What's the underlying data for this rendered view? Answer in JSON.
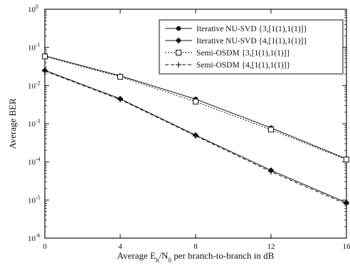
{
  "chart_data": {
    "type": "line",
    "xlabel": "Average E_b/N_0 per branch-to-branch in dB",
    "xlabel_parts": {
      "pre": "Average E",
      "sub1": "b",
      "mid": "/N",
      "sub2": "0",
      "post": " per branch-to-branch in dB"
    },
    "ylabel": "Average BER",
    "x_ticks": [
      0,
      4,
      8,
      12,
      16
    ],
    "x_tick_labels": [
      "0",
      "4",
      "8",
      "12",
      "16"
    ],
    "xlim": [
      0,
      16
    ],
    "y_scale": "log",
    "ylim": [
      1e-06,
      1
    ],
    "y_ticks": [
      {
        "value": 1,
        "base": "10",
        "exp": "0"
      },
      {
        "value": 0.1,
        "base": "10",
        "exp": "-1"
      },
      {
        "value": 0.01,
        "base": "10",
        "exp": "-2"
      },
      {
        "value": 0.001,
        "base": "10",
        "exp": "-3"
      },
      {
        "value": 0.0001,
        "base": "10",
        "exp": "-4"
      },
      {
        "value": 1e-05,
        "base": "10",
        "exp": "-5"
      },
      {
        "value": 1e-06,
        "base": "10",
        "exp": "-6"
      }
    ],
    "grid": false,
    "legend_position": "top-right",
    "series": [
      {
        "name": "Iterative NU-SVD {3,[1(1),1(1)]}",
        "marker": "filled-circle",
        "line": "solid",
        "x": [
          0,
          4,
          8,
          12,
          16
        ],
        "y": [
          0.06,
          0.018,
          0.0044,
          0.00078,
          0.00012
        ]
      },
      {
        "name": "Iterative NU-SVD {4,[1(1),1(1)]}",
        "marker": "filled-diamond",
        "line": "solid",
        "x": [
          0,
          4,
          8,
          12,
          16
        ],
        "y": [
          0.025,
          0.0045,
          0.0005,
          6e-05,
          8.5e-06
        ]
      },
      {
        "name": "Semi-OSDM {3,[1(1),1(1)]}",
        "marker": "open-square",
        "line": "dotted",
        "x": [
          0,
          4,
          8,
          12,
          16
        ],
        "y": [
          0.058,
          0.017,
          0.0038,
          0.0007,
          0.000115
        ]
      },
      {
        "name": "Semi-OSDM {4,[1(1),1(1)]}",
        "marker": "plus",
        "line": "dashed",
        "x": [
          0,
          4,
          8,
          12,
          16
        ],
        "y": [
          0.024,
          0.0043,
          0.00048,
          5.5e-05,
          7.8e-06
        ]
      }
    ]
  }
}
